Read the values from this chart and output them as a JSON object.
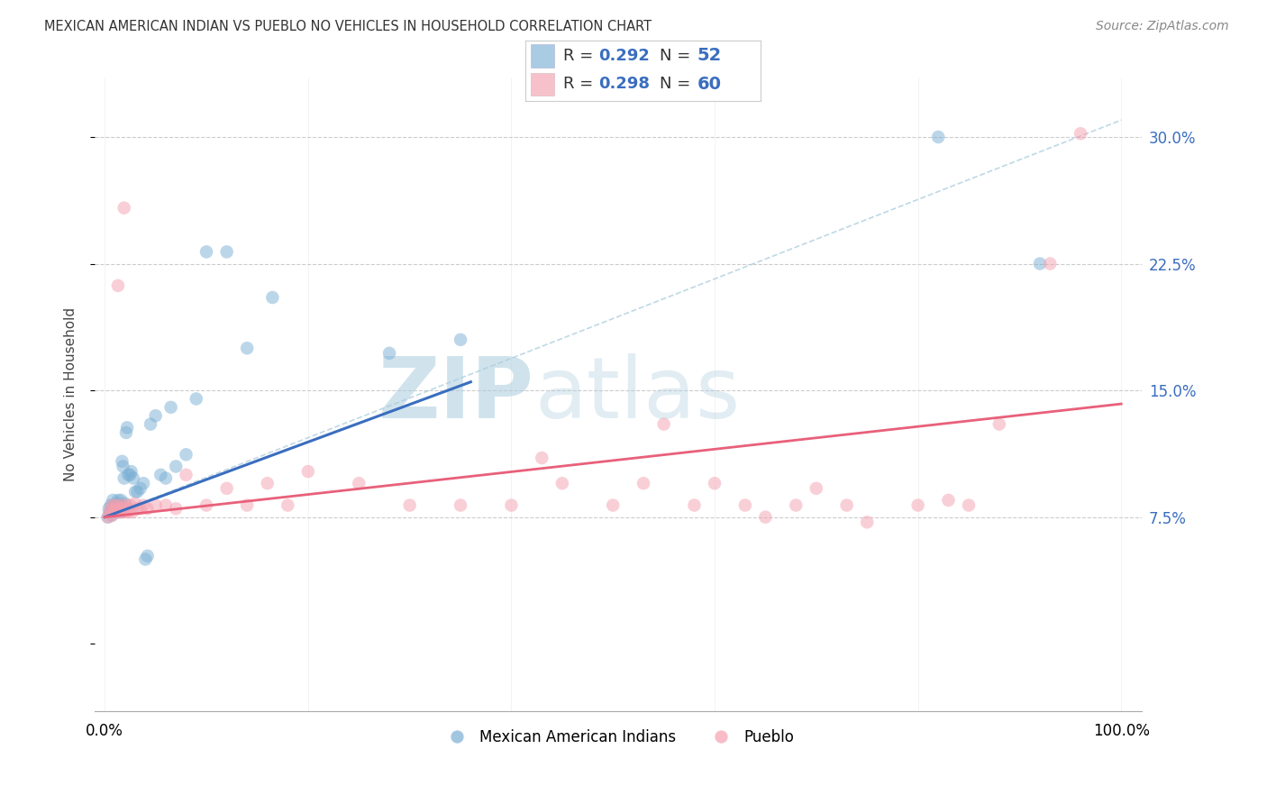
{
  "title": "MEXICAN AMERICAN INDIAN VS PUEBLO NO VEHICLES IN HOUSEHOLD CORRELATION CHART",
  "source": "Source: ZipAtlas.com",
  "ylabel": "No Vehicles in Household",
  "color_blue": "#7BAFD4",
  "color_pink": "#F4A0B0",
  "color_blue_line": "#3A6EBF",
  "color_pink_line": "#E8607A",
  "color_dashed": "#AACCDD",
  "background": "#FFFFFF",
  "watermark_zip": "ZIP",
  "watermark_atlas": "atlas",
  "legend_label1": "Mexican American Indians",
  "legend_label2": "Pueblo",
  "blue_x": [
    0.003,
    0.004,
    0.005,
    0.006,
    0.007,
    0.008,
    0.008,
    0.009,
    0.01,
    0.01,
    0.011,
    0.012,
    0.012,
    0.013,
    0.013,
    0.014,
    0.015,
    0.015,
    0.016,
    0.016,
    0.017,
    0.018,
    0.019,
    0.02,
    0.021,
    0.022,
    0.023,
    0.025,
    0.026,
    0.028,
    0.03,
    0.032,
    0.035,
    0.038,
    0.04,
    0.042,
    0.045,
    0.05,
    0.055,
    0.06,
    0.065,
    0.07,
    0.08,
    0.09,
    0.1,
    0.12,
    0.14,
    0.165,
    0.28,
    0.35,
    0.82,
    0.92
  ],
  "blue_y": [
    0.075,
    0.08,
    0.078,
    0.082,
    0.076,
    0.079,
    0.085,
    0.08,
    0.078,
    0.082,
    0.08,
    0.078,
    0.083,
    0.079,
    0.085,
    0.082,
    0.08,
    0.078,
    0.085,
    0.082,
    0.108,
    0.105,
    0.098,
    0.083,
    0.125,
    0.128,
    0.1,
    0.1,
    0.102,
    0.098,
    0.09,
    0.09,
    0.092,
    0.095,
    0.05,
    0.052,
    0.13,
    0.135,
    0.1,
    0.098,
    0.14,
    0.105,
    0.112,
    0.145,
    0.232,
    0.232,
    0.175,
    0.205,
    0.172,
    0.18,
    0.3,
    0.225
  ],
  "pink_x": [
    0.003,
    0.005,
    0.006,
    0.007,
    0.008,
    0.009,
    0.01,
    0.011,
    0.012,
    0.013,
    0.014,
    0.015,
    0.016,
    0.017,
    0.018,
    0.019,
    0.02,
    0.021,
    0.022,
    0.023,
    0.025,
    0.027,
    0.03,
    0.032,
    0.035,
    0.038,
    0.042,
    0.05,
    0.06,
    0.07,
    0.08,
    0.1,
    0.12,
    0.14,
    0.16,
    0.18,
    0.2,
    0.25,
    0.3,
    0.35,
    0.4,
    0.43,
    0.45,
    0.5,
    0.53,
    0.55,
    0.58,
    0.6,
    0.63,
    0.65,
    0.68,
    0.7,
    0.73,
    0.75,
    0.8,
    0.83,
    0.85,
    0.88,
    0.93,
    0.96
  ],
  "pink_y": [
    0.075,
    0.078,
    0.08,
    0.076,
    0.082,
    0.078,
    0.08,
    0.082,
    0.078,
    0.212,
    0.08,
    0.078,
    0.082,
    0.078,
    0.08,
    0.258,
    0.078,
    0.082,
    0.08,
    0.078,
    0.082,
    0.078,
    0.083,
    0.08,
    0.08,
    0.082,
    0.08,
    0.082,
    0.082,
    0.08,
    0.1,
    0.082,
    0.092,
    0.082,
    0.095,
    0.082,
    0.102,
    0.095,
    0.082,
    0.082,
    0.082,
    0.11,
    0.095,
    0.082,
    0.095,
    0.13,
    0.082,
    0.095,
    0.082,
    0.075,
    0.082,
    0.092,
    0.082,
    0.072,
    0.082,
    0.085,
    0.082,
    0.13,
    0.225,
    0.302
  ],
  "blue_line_x": [
    0.0,
    0.36
  ],
  "blue_line_y": [
    0.075,
    0.155
  ],
  "pink_line_x": [
    0.0,
    1.0
  ],
  "pink_line_y": [
    0.075,
    0.142
  ],
  "dashed_line_x": [
    0.0,
    1.0
  ],
  "dashed_line_y": [
    0.075,
    0.31
  ],
  "yticks": [
    0.0,
    0.075,
    0.15,
    0.225,
    0.3
  ],
  "ytick_labels": [
    "",
    "7.5%",
    "15.0%",
    "22.5%",
    "30.0%"
  ],
  "xtick_vals": [
    0.0,
    0.2,
    0.4,
    0.6,
    0.8,
    1.0
  ],
  "xtick_labels": [
    "0.0%",
    "",
    "",
    "",
    "",
    "100.0%"
  ],
  "ylim": [
    -0.04,
    0.335
  ],
  "xlim": [
    -0.01,
    1.02
  ]
}
